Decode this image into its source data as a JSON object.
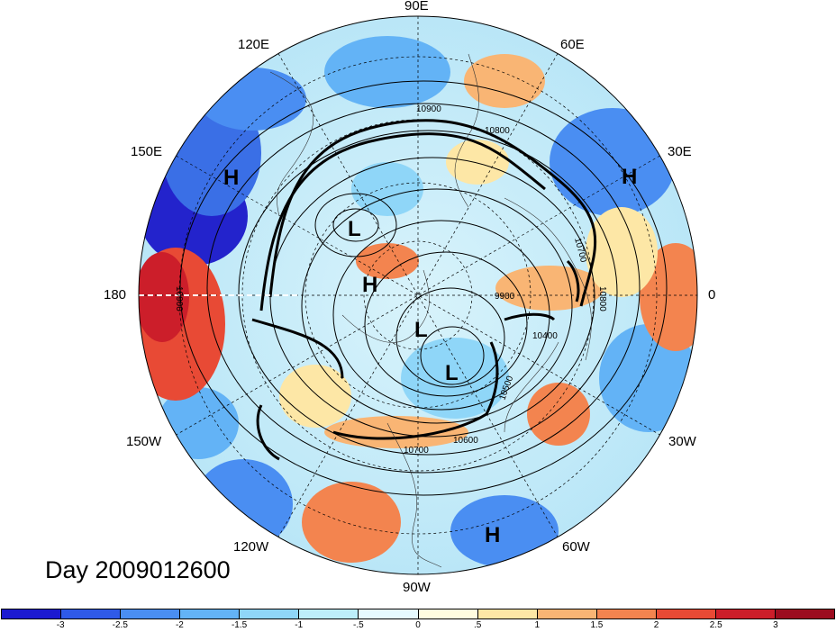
{
  "map": {
    "projection": "north-polar-stereographic",
    "day_label": "Day 2009012600",
    "longitude_labels": {
      "n": "90E",
      "ne": "60E",
      "ene": "30E",
      "e": "0",
      "ese": "30W",
      "se": "60W",
      "s": "90W",
      "sw": "120W",
      "wsw": "150W",
      "w": "180",
      "wnw": "150E",
      "nw": "120E"
    },
    "pressure_markers": [
      {
        "label": "H",
        "region": "North Pacific near 150E"
      },
      {
        "label": "L",
        "region": "Siberia"
      },
      {
        "label": "H",
        "region": "Arctic near pole"
      },
      {
        "label": "L",
        "region": "Arctic Canada"
      },
      {
        "label": "L",
        "region": "Hudson Bay"
      },
      {
        "label": "H",
        "region": "Eastern Europe near 30E"
      },
      {
        "label": "H",
        "region": "Subtropical Atlantic near 60W"
      }
    ],
    "contour_labels": [
      "10900",
      "10800",
      "10700",
      "10600",
      "10800",
      "9900",
      "10400",
      "10500",
      "10600",
      "10700",
      "10900"
    ]
  },
  "colorbar": {
    "colors": [
      "#1c1ad0",
      "#2f5ae8",
      "#4a8ef2",
      "#63b3f6",
      "#8fd6f8",
      "#bdeefa",
      "#e6faff",
      "#fffce0",
      "#fde7a6",
      "#f9b574",
      "#f3844f",
      "#e84a35",
      "#cc1e2a",
      "#9c0c1f"
    ],
    "ticks": [
      "-3",
      "-2.5",
      "-2",
      "-1.5",
      "-1",
      "-.5",
      "0",
      ".5",
      "1",
      "1.5",
      "2",
      "2.5",
      "3"
    ]
  }
}
